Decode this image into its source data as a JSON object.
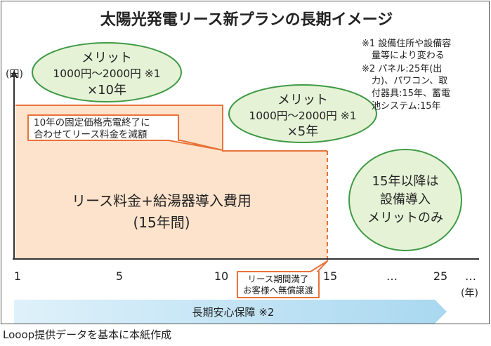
{
  "title": "太陽光発電リース新プランの長期イメージ",
  "y_unit": "(円)",
  "x_unit": "(年)",
  "x_ticks": [
    "1",
    "5",
    "10",
    "15",
    "…",
    "25",
    "…"
  ],
  "notes": {
    "n1": [
      "※1 設備住所や設備容",
      "量等により変わる"
    ],
    "n2": [
      "※2 パネル:25年(出",
      "力)、パワコン、取",
      "付器具:15年、蓄電",
      "池システム:15年"
    ]
  },
  "merit1": {
    "title": "メリット",
    "line1": "1000円〜2000円 ※1",
    "line2": "×10年"
  },
  "merit2": {
    "title": "メリット",
    "line1": "1000円〜2000円 ※1",
    "line2": "×5年"
  },
  "merit3": {
    "lines": [
      "15年以降は",
      "設備導入",
      "メリットのみ"
    ]
  },
  "callout_reduce": [
    "10年の固定価格売電終了に",
    "合わせてリース料金を減額"
  ],
  "lease_label": [
    "リース料金+給湯器導入費用",
    "(15年間)"
  ],
  "callout_end": [
    "リース期間満了",
    "お客様へ無償譲渡"
  ],
  "guarantee": "長期安心保障 ※2",
  "source": "Looop提供データを基本に本紙作成",
  "colors": {
    "orange_fill": "#fde3cc",
    "orange_line": "#e8733a",
    "ellipse_fill": "#e5f2d6",
    "ellipse_line": "#3f9a45",
    "arrow_fill": "#c9e6f5"
  }
}
